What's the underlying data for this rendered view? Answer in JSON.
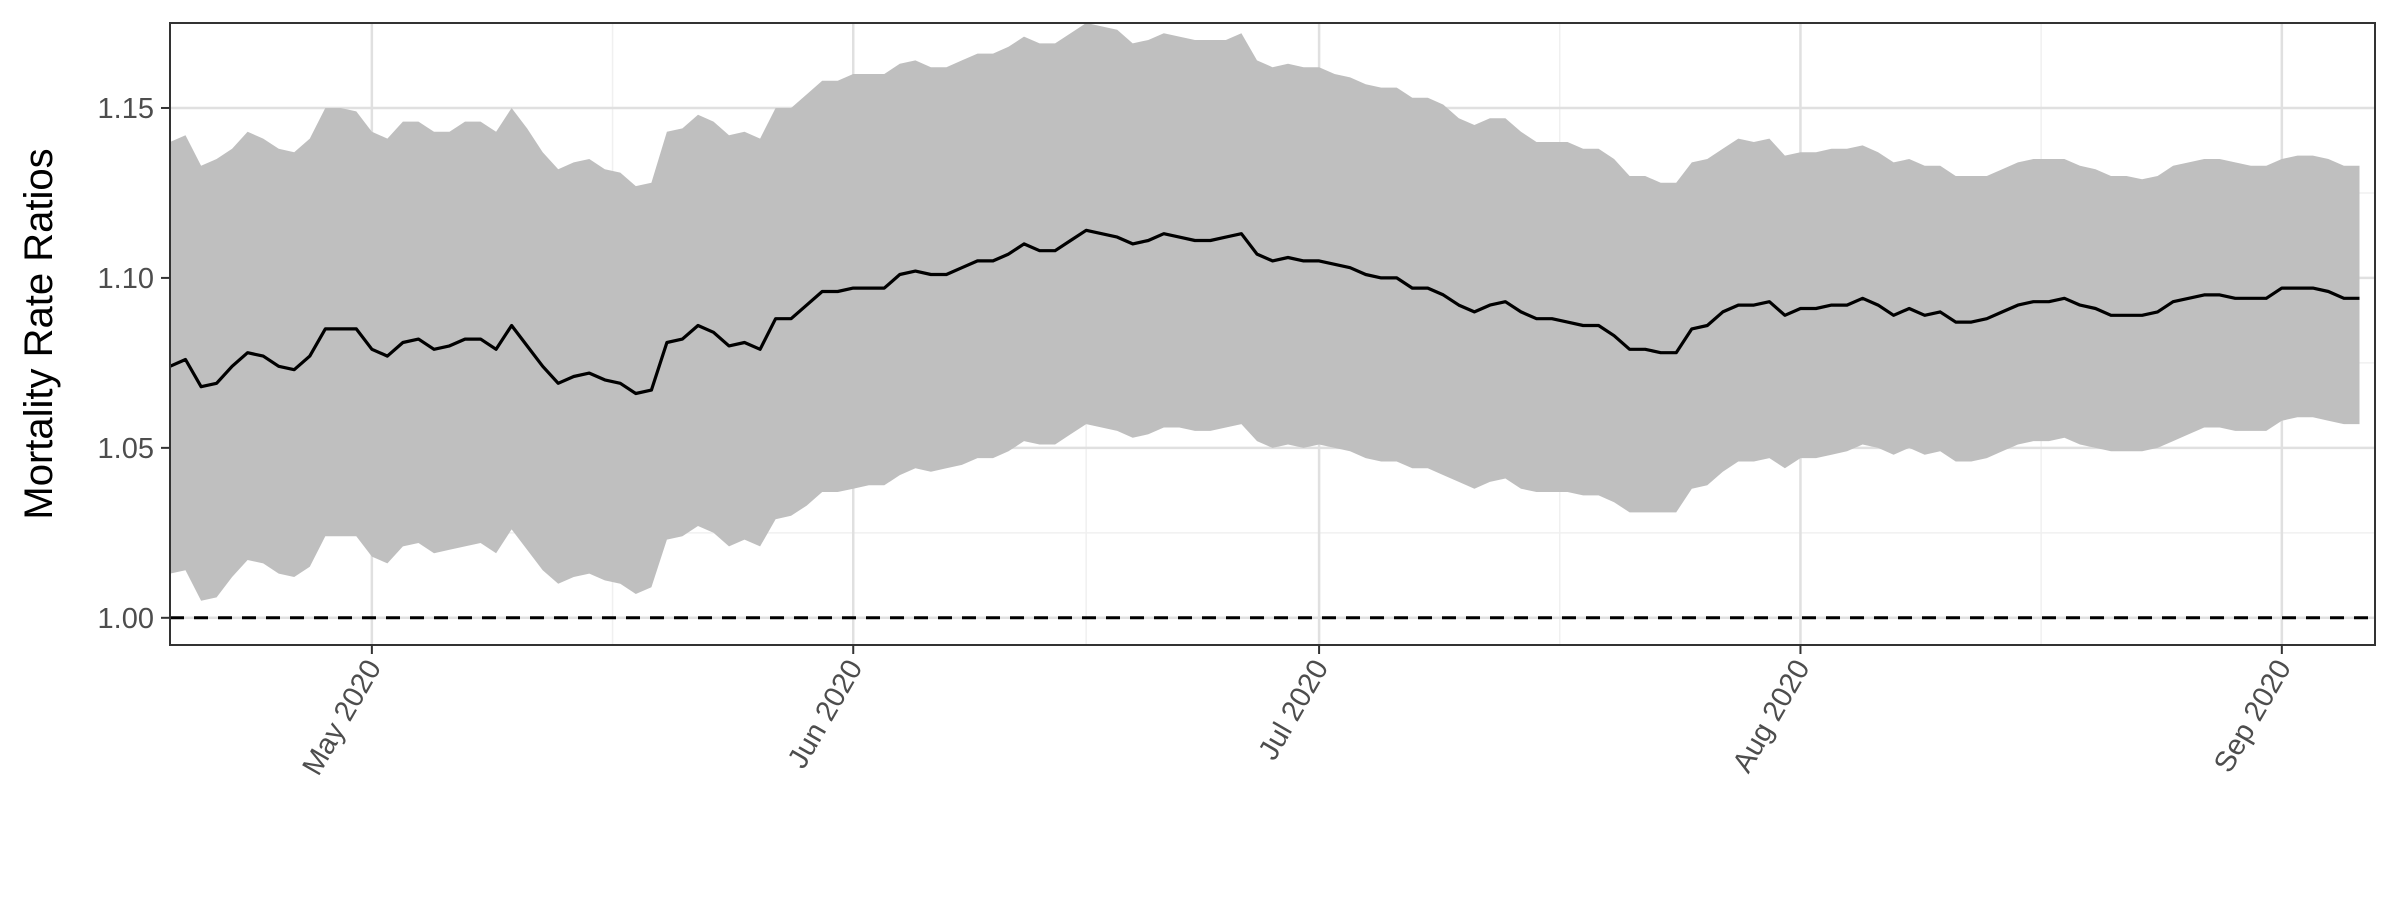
{
  "chart_data": {
    "type": "area",
    "title": "",
    "xlabel": "",
    "ylabel": "Mortality Rate Ratios",
    "x_start": "2020-04-18",
    "x_range": [
      "2020-04-18",
      "2020-09-07"
    ],
    "ylim": [
      0.992,
      1.175
    ],
    "y_ticks": [
      1.0,
      1.05,
      1.1,
      1.15
    ],
    "y_tick_labels": [
      "1.00",
      "1.05",
      "1.10",
      "1.15"
    ],
    "x_ticks": [
      "2020-05-01",
      "2020-06-01",
      "2020-07-01",
      "2020-08-01",
      "2020-09-01"
    ],
    "x_tick_labels": [
      "May 2020",
      "Jun 2020",
      "Jul 2020",
      "Aug 2020",
      "Sep 2020"
    ],
    "reference_line": 1.0,
    "grid": true,
    "legend": "none",
    "colors": {
      "band": "#bfbfbf",
      "line": "#000000",
      "grid_major": "#e0e0e0",
      "grid_minor": "#f0f0f0",
      "panel_border": "#333333"
    },
    "series": [
      {
        "estimate": [
          1.074,
          1.076,
          1.068,
          1.069,
          1.074,
          1.078,
          1.077,
          1.074,
          1.073,
          1.077,
          1.085,
          1.085,
          1.085,
          1.079,
          1.077,
          1.081,
          1.082,
          1.079,
          1.08,
          1.082,
          1.082,
          1.079,
          1.086,
          1.08,
          1.074,
          1.069,
          1.071,
          1.072,
          1.07,
          1.069,
          1.066,
          1.067,
          1.081,
          1.082,
          1.086,
          1.084,
          1.08,
          1.081,
          1.079,
          1.088,
          1.088,
          1.092,
          1.096,
          1.096,
          1.097,
          1.097,
          1.097,
          1.101,
          1.102,
          1.101,
          1.101,
          1.103,
          1.105,
          1.105,
          1.107,
          1.11,
          1.108,
          1.108,
          1.111,
          1.114,
          1.113,
          1.112,
          1.11,
          1.111,
          1.113,
          1.112,
          1.111,
          1.111,
          1.112,
          1.113,
          1.107,
          1.105,
          1.106,
          1.105,
          1.105,
          1.104,
          1.103,
          1.101,
          1.1,
          1.1,
          1.097,
          1.097,
          1.095,
          1.092,
          1.09,
          1.092,
          1.093,
          1.09,
          1.088,
          1.088,
          1.087,
          1.086,
          1.086,
          1.083,
          1.079,
          1.079,
          1.078,
          1.078,
          1.085,
          1.086,
          1.09,
          1.092,
          1.092,
          1.093,
          1.089,
          1.091,
          1.091,
          1.092,
          1.092,
          1.094,
          1.092,
          1.089,
          1.091,
          1.089,
          1.09,
          1.087,
          1.087,
          1.088,
          1.09,
          1.092,
          1.093,
          1.093,
          1.094,
          1.092,
          1.091,
          1.089,
          1.089,
          1.089,
          1.09,
          1.093,
          1.094,
          1.095,
          1.095,
          1.094,
          1.094,
          1.094,
          1.097,
          1.097,
          1.097,
          1.096,
          1.094,
          1.094
        ],
        "lower": [
          1.013,
          1.014,
          1.005,
          1.006,
          1.012,
          1.017,
          1.016,
          1.013,
          1.012,
          1.015,
          1.024,
          1.024,
          1.024,
          1.018,
          1.016,
          1.021,
          1.022,
          1.019,
          1.02,
          1.021,
          1.022,
          1.019,
          1.026,
          1.02,
          1.014,
          1.01,
          1.012,
          1.013,
          1.011,
          1.01,
          1.007,
          1.009,
          1.023,
          1.024,
          1.027,
          1.025,
          1.021,
          1.023,
          1.021,
          1.029,
          1.03,
          1.033,
          1.037,
          1.037,
          1.038,
          1.039,
          1.039,
          1.042,
          1.044,
          1.043,
          1.044,
          1.045,
          1.047,
          1.047,
          1.049,
          1.052,
          1.051,
          1.051,
          1.054,
          1.057,
          1.056,
          1.055,
          1.053,
          1.054,
          1.056,
          1.056,
          1.055,
          1.055,
          1.056,
          1.057,
          1.052,
          1.05,
          1.051,
          1.05,
          1.051,
          1.05,
          1.049,
          1.047,
          1.046,
          1.046,
          1.044,
          1.044,
          1.042,
          1.04,
          1.038,
          1.04,
          1.041,
          1.038,
          1.037,
          1.037,
          1.037,
          1.036,
          1.036,
          1.034,
          1.031,
          1.031,
          1.031,
          1.031,
          1.038,
          1.039,
          1.043,
          1.046,
          1.046,
          1.047,
          1.044,
          1.047,
          1.047,
          1.048,
          1.049,
          1.051,
          1.05,
          1.048,
          1.05,
          1.048,
          1.049,
          1.046,
          1.046,
          1.047,
          1.049,
          1.051,
          1.052,
          1.052,
          1.053,
          1.051,
          1.05,
          1.049,
          1.049,
          1.049,
          1.05,
          1.052,
          1.054,
          1.056,
          1.056,
          1.055,
          1.055,
          1.055,
          1.058,
          1.059,
          1.059,
          1.058,
          1.057,
          1.057
        ],
        "upper": [
          1.14,
          1.142,
          1.133,
          1.135,
          1.138,
          1.143,
          1.141,
          1.138,
          1.137,
          1.141,
          1.15,
          1.15,
          1.149,
          1.143,
          1.141,
          1.146,
          1.146,
          1.143,
          1.143,
          1.146,
          1.146,
          1.143,
          1.15,
          1.144,
          1.137,
          1.132,
          1.134,
          1.135,
          1.132,
          1.131,
          1.127,
          1.128,
          1.143,
          1.144,
          1.148,
          1.146,
          1.142,
          1.143,
          1.141,
          1.15,
          1.15,
          1.154,
          1.158,
          1.158,
          1.16,
          1.16,
          1.16,
          1.163,
          1.164,
          1.162,
          1.162,
          1.164,
          1.166,
          1.166,
          1.168,
          1.171,
          1.169,
          1.169,
          1.172,
          1.175,
          1.174,
          1.173,
          1.169,
          1.17,
          1.172,
          1.171,
          1.17,
          1.17,
          1.17,
          1.172,
          1.164,
          1.162,
          1.163,
          1.162,
          1.162,
          1.16,
          1.159,
          1.157,
          1.156,
          1.156,
          1.153,
          1.153,
          1.151,
          1.147,
          1.145,
          1.147,
          1.147,
          1.143,
          1.14,
          1.14,
          1.14,
          1.138,
          1.138,
          1.135,
          1.13,
          1.13,
          1.128,
          1.128,
          1.134,
          1.135,
          1.138,
          1.141,
          1.14,
          1.141,
          1.136,
          1.137,
          1.137,
          1.138,
          1.138,
          1.139,
          1.137,
          1.134,
          1.135,
          1.133,
          1.133,
          1.13,
          1.13,
          1.13,
          1.132,
          1.134,
          1.135,
          1.135,
          1.135,
          1.133,
          1.132,
          1.13,
          1.13,
          1.129,
          1.13,
          1.133,
          1.134,
          1.135,
          1.135,
          1.134,
          1.133,
          1.133,
          1.135,
          1.136,
          1.136,
          1.135,
          1.133,
          1.133
        ]
      }
    ]
  }
}
